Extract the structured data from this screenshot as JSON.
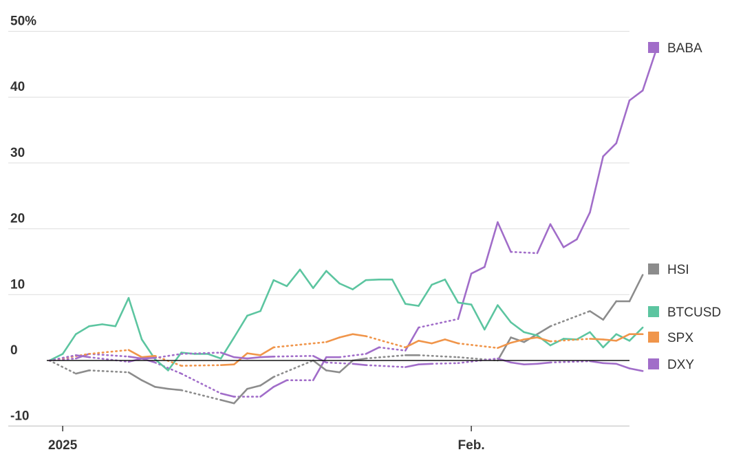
{
  "chart_data": {
    "type": "line",
    "ylim": [
      -10,
      50
    ],
    "yticks": [
      -10,
      0,
      10,
      20,
      30,
      40,
      50
    ],
    "ytick_labels": [
      "-10",
      "0",
      "10",
      "20",
      "30",
      "40",
      "50%"
    ],
    "xlim": [
      "2024-12-31",
      "2025-02-13"
    ],
    "xticks": [
      {
        "date": "2025-01-01",
        "label": "2025"
      },
      {
        "date": "2025-02-01",
        "label": "Feb."
      }
    ],
    "grid": true,
    "legend_position": "right",
    "series": [
      {
        "name": "BABA",
        "color": "#a16dc9",
        "points": [
          [
            "2024-12-31",
            0
          ],
          [
            "2025-01-02",
            0.3
          ],
          [
            "2025-01-03",
            1
          ],
          [
            "2025-01-06",
            0.6
          ],
          [
            "2025-01-07",
            0.3
          ],
          [
            "2025-01-08",
            -0.3
          ],
          [
            "2025-01-10",
            -2
          ],
          [
            "2025-01-13",
            -5
          ],
          [
            "2025-01-14",
            -5.5
          ],
          [
            "2025-01-16",
            -5.5
          ],
          [
            "2025-01-17",
            -4
          ],
          [
            "2025-01-18",
            -3
          ],
          [
            "2025-01-20",
            -3
          ],
          [
            "2025-01-21",
            0.5
          ],
          [
            "2025-01-22",
            0.5
          ],
          [
            "2025-01-24",
            1
          ],
          [
            "2025-01-25",
            2
          ],
          [
            "2025-01-27",
            1.5
          ],
          [
            "2025-01-28",
            5
          ],
          [
            "2025-01-31",
            6.3
          ],
          [
            "2025-02-01",
            13.2
          ],
          [
            "2025-02-02",
            14.2
          ],
          [
            "2025-02-03",
            21
          ],
          [
            "2025-02-04",
            16.5
          ],
          [
            "2025-02-06",
            16.3
          ],
          [
            "2025-02-07",
            20.7
          ],
          [
            "2025-02-08",
            17.2
          ],
          [
            "2025-02-09",
            18.4
          ],
          [
            "2025-02-10",
            22.5
          ],
          [
            "2025-02-11",
            31
          ],
          [
            "2025-02-12",
            33
          ],
          [
            "2025-02-13",
            39.5
          ],
          [
            "2025-02-14",
            41
          ],
          [
            "2025-02-15",
            47
          ]
        ]
      },
      {
        "name": "HSI",
        "color": "#8c8c8c",
        "points": [
          [
            "2024-12-31",
            0
          ],
          [
            "2025-01-02",
            -2
          ],
          [
            "2025-01-03",
            -1.5
          ],
          [
            "2025-01-06",
            -1.8
          ],
          [
            "2025-01-07",
            -3
          ],
          [
            "2025-01-08",
            -4
          ],
          [
            "2025-01-09",
            -4.3
          ],
          [
            "2025-01-10",
            -4.5
          ],
          [
            "2025-01-13",
            -6
          ],
          [
            "2025-01-14",
            -6.5
          ],
          [
            "2025-01-15",
            -4.3
          ],
          [
            "2025-01-16",
            -3.8
          ],
          [
            "2025-01-17",
            -2.5
          ],
          [
            "2025-01-20",
            0
          ],
          [
            "2025-01-21",
            -1.5
          ],
          [
            "2025-01-22",
            -1.8
          ],
          [
            "2025-01-23",
            0
          ],
          [
            "2025-01-24",
            0.3
          ],
          [
            "2025-01-27",
            0.8
          ],
          [
            "2025-01-28",
            0.8
          ],
          [
            "2025-01-31",
            0.5
          ],
          [
            "2025-02-03",
            0
          ],
          [
            "2025-02-04",
            3.5
          ],
          [
            "2025-02-05",
            2.8
          ],
          [
            "2025-02-06",
            4
          ],
          [
            "2025-02-07",
            5.2
          ],
          [
            "2025-02-10",
            7.5
          ],
          [
            "2025-02-11",
            6.2
          ],
          [
            "2025-02-12",
            9
          ],
          [
            "2025-02-13",
            9
          ],
          [
            "2025-02-14",
            13
          ]
        ]
      },
      {
        "name": "BTCUSD",
        "color": "#5cc5a0",
        "points": [
          [
            "2024-12-31",
            0
          ],
          [
            "2025-01-01",
            1
          ],
          [
            "2025-01-02",
            4
          ],
          [
            "2025-01-03",
            5.2
          ],
          [
            "2025-01-04",
            5.5
          ],
          [
            "2025-01-05",
            5.2
          ],
          [
            "2025-01-06",
            9.5
          ],
          [
            "2025-01-07",
            3.2
          ],
          [
            "2025-01-08",
            0.2
          ],
          [
            "2025-01-09",
            -1.5
          ],
          [
            "2025-01-10",
            1.2
          ],
          [
            "2025-01-11",
            1
          ],
          [
            "2025-01-12",
            1
          ],
          [
            "2025-01-13",
            0.3
          ],
          [
            "2025-01-14",
            3.5
          ],
          [
            "2025-01-15",
            6.8
          ],
          [
            "2025-01-16",
            7.5
          ],
          [
            "2025-01-17",
            12.2
          ],
          [
            "2025-01-18",
            11.3
          ],
          [
            "2025-01-19",
            13.8
          ],
          [
            "2025-01-20",
            11
          ],
          [
            "2025-01-21",
            13.6
          ],
          [
            "2025-01-22",
            11.7
          ],
          [
            "2025-01-23",
            10.8
          ],
          [
            "2025-01-24",
            12.2
          ],
          [
            "2025-01-25",
            12.3
          ],
          [
            "2025-01-26",
            12.3
          ],
          [
            "2025-01-27",
            8.6
          ],
          [
            "2025-01-28",
            8.3
          ],
          [
            "2025-01-29",
            11.5
          ],
          [
            "2025-01-30",
            12.3
          ],
          [
            "2025-01-31",
            8.8
          ],
          [
            "2025-02-01",
            8.5
          ],
          [
            "2025-02-02",
            4.7
          ],
          [
            "2025-02-03",
            8.4
          ],
          [
            "2025-02-04",
            5.8
          ],
          [
            "2025-02-05",
            4.3
          ],
          [
            "2025-02-06",
            3.8
          ],
          [
            "2025-02-07",
            2.3
          ],
          [
            "2025-02-08",
            3.3
          ],
          [
            "2025-02-09",
            3.2
          ],
          [
            "2025-02-10",
            4.3
          ],
          [
            "2025-02-11",
            2
          ],
          [
            "2025-02-12",
            4
          ],
          [
            "2025-02-13",
            3
          ],
          [
            "2025-02-14",
            5
          ]
        ]
      },
      {
        "name": "SPX",
        "color": "#f0954a",
        "points": [
          [
            "2024-12-31",
            0
          ],
          [
            "2025-01-03",
            1
          ],
          [
            "2025-01-06",
            1.6
          ],
          [
            "2025-01-07",
            0.5
          ],
          [
            "2025-01-08",
            0.7
          ],
          [
            "2025-01-10",
            -0.8
          ],
          [
            "2025-01-13",
            -0.7
          ],
          [
            "2025-01-14",
            -0.6
          ],
          [
            "2025-01-15",
            1.1
          ],
          [
            "2025-01-16",
            0.8
          ],
          [
            "2025-01-17",
            2
          ],
          [
            "2025-01-21",
            2.8
          ],
          [
            "2025-01-22",
            3.5
          ],
          [
            "2025-01-23",
            4
          ],
          [
            "2025-01-24",
            3.7
          ],
          [
            "2025-01-27",
            2
          ],
          [
            "2025-01-28",
            3
          ],
          [
            "2025-01-29",
            2.6
          ],
          [
            "2025-01-30",
            3.2
          ],
          [
            "2025-01-31",
            2.6
          ],
          [
            "2025-02-03",
            1.9
          ],
          [
            "2025-02-04",
            2.7
          ],
          [
            "2025-02-05",
            3.2
          ],
          [
            "2025-02-06",
            3.5
          ],
          [
            "2025-02-07",
            2.9
          ],
          [
            "2025-02-10",
            3.3
          ],
          [
            "2025-02-11",
            3.2
          ],
          [
            "2025-02-12",
            3
          ],
          [
            "2025-02-13",
            4
          ],
          [
            "2025-02-14",
            4
          ]
        ]
      },
      {
        "name": "DXY",
        "color": "#a16dc9",
        "points": [
          [
            "2024-12-31",
            0
          ],
          [
            "2025-01-02",
            0.8
          ],
          [
            "2025-01-03",
            0.5
          ],
          [
            "2025-01-06",
            -0.2
          ],
          [
            "2025-01-07",
            0.3
          ],
          [
            "2025-01-08",
            0.4
          ],
          [
            "2025-01-10",
            1
          ],
          [
            "2025-01-13",
            1.2
          ],
          [
            "2025-01-14",
            0.5
          ],
          [
            "2025-01-15",
            0.3
          ],
          [
            "2025-01-16",
            0.5
          ],
          [
            "2025-01-17",
            0.6
          ],
          [
            "2025-01-20",
            0.7
          ],
          [
            "2025-01-21",
            -0.3
          ],
          [
            "2025-01-23",
            -0.5
          ],
          [
            "2025-01-24",
            -0.7
          ],
          [
            "2025-01-27",
            -1
          ],
          [
            "2025-01-28",
            -0.6
          ],
          [
            "2025-01-29",
            -0.5
          ],
          [
            "2025-01-31",
            -0.4
          ],
          [
            "2025-02-03",
            0.3
          ],
          [
            "2025-02-04",
            -0.3
          ],
          [
            "2025-02-05",
            -0.6
          ],
          [
            "2025-02-06",
            -0.5
          ],
          [
            "2025-02-07",
            -0.3
          ],
          [
            "2025-02-10",
            -0.1
          ],
          [
            "2025-02-11",
            -0.4
          ],
          [
            "2025-02-12",
            -0.5
          ],
          [
            "2025-02-13",
            -1.2
          ],
          [
            "2025-02-14",
            -1.6
          ]
        ]
      }
    ],
    "legend": [
      {
        "name": "BABA",
        "color": "#a16dc9"
      },
      {
        "name": "HSI",
        "color": "#8c8c8c"
      },
      {
        "name": "BTCUSD",
        "color": "#5cc5a0"
      },
      {
        "name": "SPX",
        "color": "#f0954a"
      },
      {
        "name": "DXY",
        "color": "#a16dc9"
      }
    ]
  }
}
